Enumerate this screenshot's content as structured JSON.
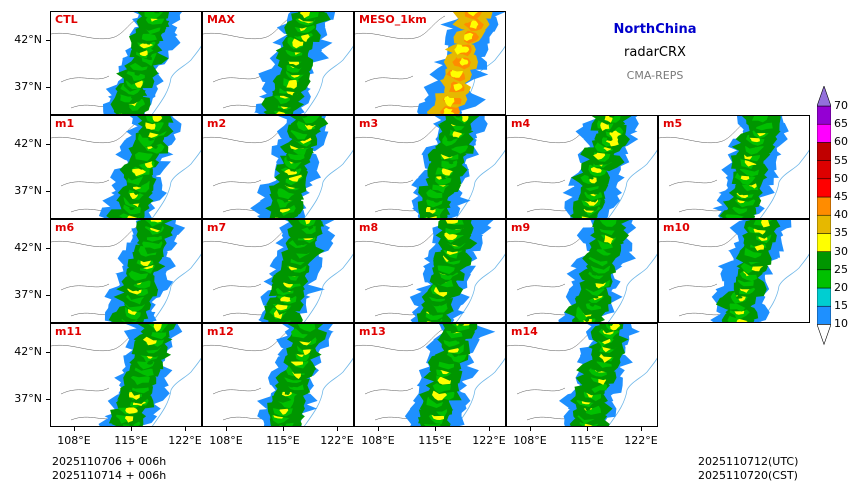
{
  "header": {
    "region": "NorthChina",
    "variable": "radarCRX",
    "system": "CMA-REPS"
  },
  "panels": [
    {
      "label": "CTL",
      "row": 0,
      "col": 0,
      "kind": "ctl"
    },
    {
      "label": "MAX",
      "row": 0,
      "col": 1,
      "kind": "max"
    },
    {
      "label": "MESO_1km",
      "row": 0,
      "col": 2,
      "kind": "meso"
    },
    {
      "label": "m1",
      "row": 1,
      "col": 0,
      "kind": "m"
    },
    {
      "label": "m2",
      "row": 1,
      "col": 1,
      "kind": "m"
    },
    {
      "label": "m3",
      "row": 1,
      "col": 2,
      "kind": "m"
    },
    {
      "label": "m4",
      "row": 1,
      "col": 3,
      "kind": "m"
    },
    {
      "label": "m5",
      "row": 1,
      "col": 4,
      "kind": "m"
    },
    {
      "label": "m6",
      "row": 2,
      "col": 0,
      "kind": "m"
    },
    {
      "label": "m7",
      "row": 2,
      "col": 1,
      "kind": "m"
    },
    {
      "label": "m8",
      "row": 2,
      "col": 2,
      "kind": "m"
    },
    {
      "label": "m9",
      "row": 2,
      "col": 3,
      "kind": "m"
    },
    {
      "label": "m10",
      "row": 2,
      "col": 4,
      "kind": "m"
    },
    {
      "label": "m11",
      "row": 3,
      "col": 0,
      "kind": "m"
    },
    {
      "label": "m12",
      "row": 3,
      "col": 1,
      "kind": "m"
    },
    {
      "label": "m13",
      "row": 3,
      "col": 2,
      "kind": "m"
    },
    {
      "label": "m14",
      "row": 3,
      "col": 3,
      "kind": "m"
    }
  ],
  "axes": {
    "lat_labels": [
      "42°N",
      "37°N"
    ],
    "lon_labels": [
      "108°E",
      "115°E",
      "122°E"
    ]
  },
  "colorbar": {
    "levels": [
      "10",
      "15",
      "20",
      "25",
      "30",
      "35",
      "40",
      "45",
      "50",
      "55",
      "60",
      "65",
      "70"
    ],
    "colors": [
      "#1e90ff",
      "#00ced1",
      "#00c000",
      "#009600",
      "#ffff00",
      "#e6b800",
      "#ff8c00",
      "#ff0000",
      "#dd0000",
      "#c00000",
      "#ff00ff",
      "#9400d3"
    ],
    "extend_low_color": "#ffffff",
    "extend_high_color": "#9370db"
  },
  "footer": {
    "init_time": "2025110706  +  006h",
    "init_time_local": "2025110714  +  006h",
    "valid_utc": "2025110712(UTC)",
    "valid_cst": "2025110720(CST)"
  }
}
